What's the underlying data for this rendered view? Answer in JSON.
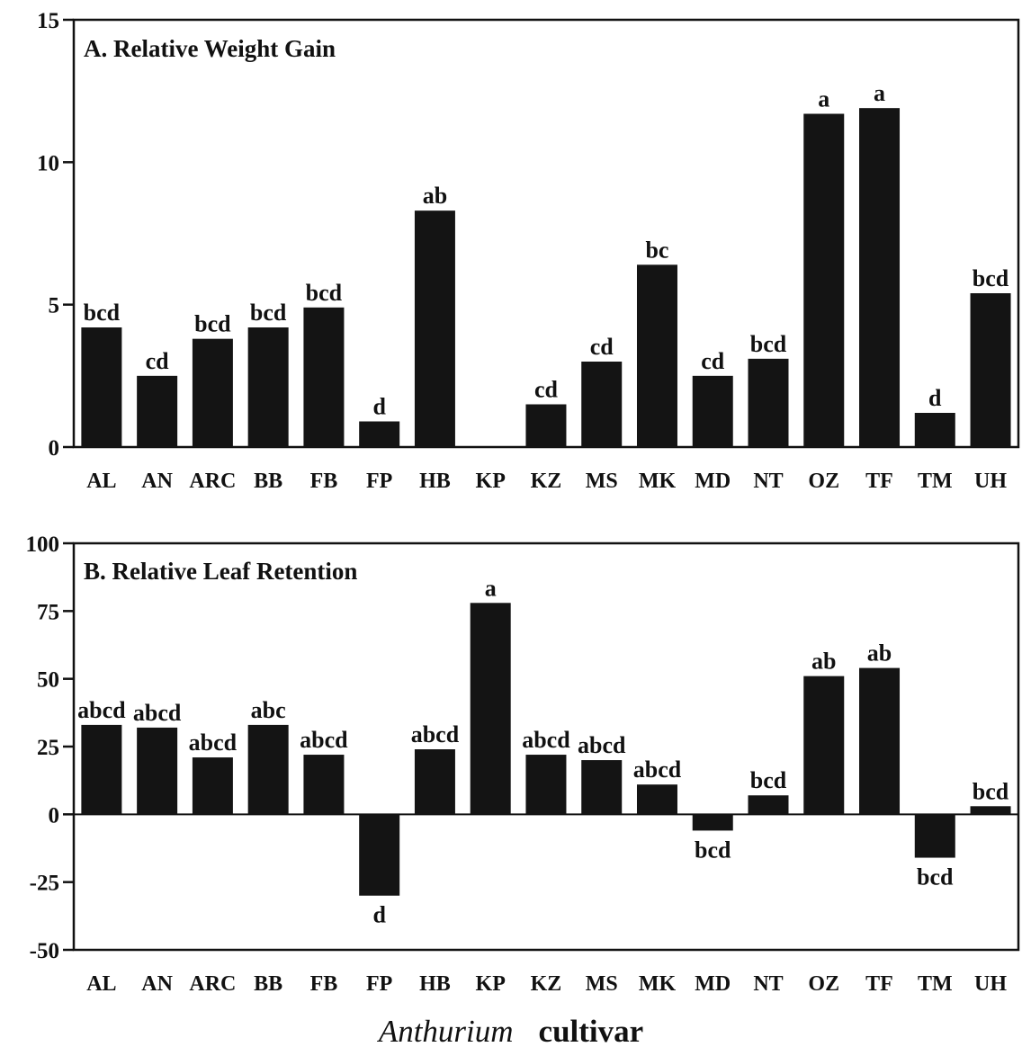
{
  "xlabel": {
    "italic": "Anthurium",
    "plain": "cultivar"
  },
  "chart_data": [
    {
      "type": "bar",
      "title": "A. Relative Weight Gain",
      "categories": [
        "AL",
        "AN",
        "ARC",
        "BB",
        "FB",
        "FP",
        "HB",
        "KP",
        "KZ",
        "MS",
        "MK",
        "MD",
        "NT",
        "OZ",
        "TF",
        "TM",
        "UH"
      ],
      "values": [
        4.2,
        2.5,
        3.8,
        4.2,
        4.9,
        0.9,
        8.3,
        0,
        1.5,
        3.0,
        6.4,
        2.5,
        3.1,
        11.7,
        11.9,
        1.2,
        5.4
      ],
      "labels": [
        "bcd",
        "cd",
        "bcd",
        "bcd",
        "bcd",
        "d",
        "ab",
        "",
        "cd",
        "cd",
        "bc",
        "cd",
        "bcd",
        "a",
        "a",
        "d",
        "bcd"
      ],
      "ylim": [
        0,
        15
      ],
      "yticks": [
        "0",
        "5",
        "10",
        "15"
      ],
      "grid": false
    },
    {
      "type": "bar",
      "title": "B. Relative Leaf Retention",
      "categories": [
        "AL",
        "AN",
        "ARC",
        "BB",
        "FB",
        "FP",
        "HB",
        "KP",
        "KZ",
        "MS",
        "MK",
        "MD",
        "NT",
        "OZ",
        "TF",
        "TM",
        "UH"
      ],
      "values": [
        33,
        32,
        21,
        33,
        22,
        -30,
        24,
        78,
        22,
        20,
        11,
        -6,
        7,
        51,
        54,
        -16,
        3
      ],
      "labels": [
        "abcd",
        "abcd",
        "abcd",
        "abc",
        "abcd",
        "d",
        "abcd",
        "a",
        "abcd",
        "abcd",
        "abcd",
        "bcd",
        "bcd",
        "ab",
        "ab",
        "bcd",
        "bcd"
      ],
      "ylim": [
        -50,
        100
      ],
      "yticks": [
        "-50",
        "-25",
        "0",
        "25",
        "50",
        "75",
        "100"
      ],
      "grid": false
    }
  ]
}
